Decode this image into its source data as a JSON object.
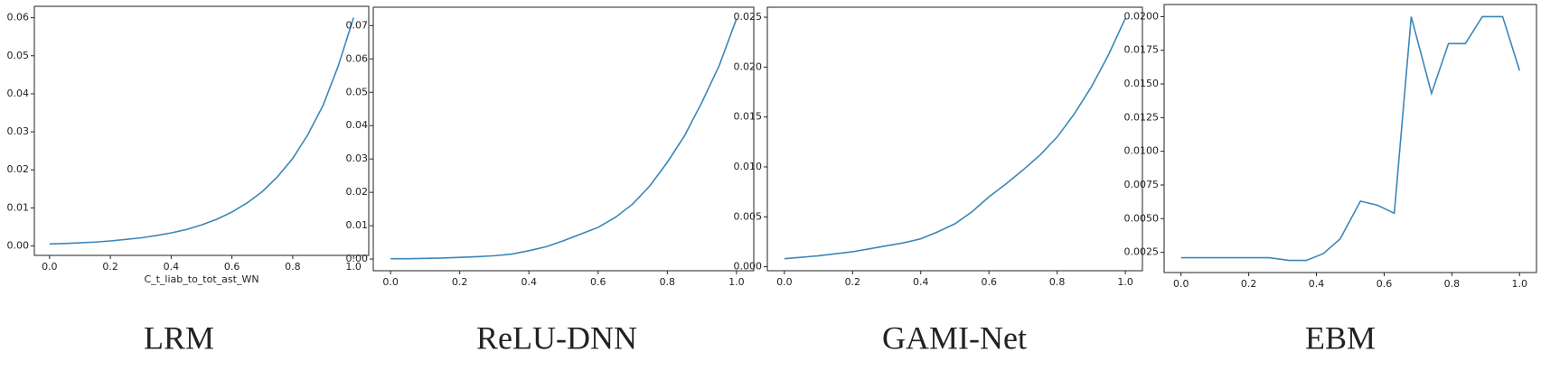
{
  "chart_data": [
    {
      "type": "line",
      "title": "LRM",
      "x_label": "C_t_liab_to_tot_ast_WN",
      "color": "#3a87b8",
      "x": [
        0,
        0.05,
        0.1,
        0.15,
        0.2,
        0.25,
        0.3,
        0.35,
        0.4,
        0.45,
        0.5,
        0.55,
        0.6,
        0.65,
        0.7,
        0.75,
        0.8,
        0.85,
        0.9,
        0.95,
        1.0
      ],
      "values": [
        0.0005,
        0.00064,
        0.0008,
        0.001,
        0.0013,
        0.0017,
        0.0021,
        0.0027,
        0.0034,
        0.0043,
        0.0055,
        0.007,
        0.0089,
        0.0113,
        0.0143,
        0.0182,
        0.023,
        0.0293,
        0.037,
        0.0474,
        0.06
      ],
      "xlim": [
        -0.05,
        1.05
      ],
      "ylim": [
        -0.0025,
        0.063
      ],
      "xticks": [
        {
          "value": 0,
          "label": "0.0"
        },
        {
          "value": 0.2,
          "label": "0.2"
        },
        {
          "value": 0.4,
          "label": "0.4"
        },
        {
          "value": 0.6,
          "label": "0.6"
        },
        {
          "value": 0.8,
          "label": "0.8"
        },
        {
          "value": 1.0,
          "label": "1.0"
        }
      ],
      "yticks": [
        {
          "value": 0,
          "label": "0.00"
        },
        {
          "value": 0.01,
          "label": "0.01"
        },
        {
          "value": 0.02,
          "label": "0.02"
        },
        {
          "value": 0.03,
          "label": "0.03"
        },
        {
          "value": 0.04,
          "label": "0.04"
        },
        {
          "value": 0.05,
          "label": "0.05"
        },
        {
          "value": 0.06,
          "label": "0.06"
        }
      ]
    },
    {
      "type": "line",
      "title": "ReLU-DNN",
      "color": "#3a87b8",
      "x": [
        0,
        0.05,
        0.1,
        0.15,
        0.2,
        0.25,
        0.3,
        0.35,
        0.4,
        0.45,
        0.5,
        0.55,
        0.6,
        0.65,
        0.7,
        0.75,
        0.8,
        0.85,
        0.9,
        0.95,
        1.0
      ],
      "values": [
        0.0001,
        0.0001,
        0.0002,
        0.0003,
        0.0005,
        0.0007,
        0.001,
        0.0015,
        0.0025,
        0.0037,
        0.0055,
        0.0075,
        0.0095,
        0.0125,
        0.0165,
        0.022,
        0.029,
        0.037,
        0.047,
        0.058,
        0.072
      ],
      "xlim": [
        -0.05,
        1.05
      ],
      "ylim": [
        -0.0035,
        0.0755
      ],
      "xticks": [
        {
          "value": 0,
          "label": "0.0"
        },
        {
          "value": 0.2,
          "label": "0.2"
        },
        {
          "value": 0.4,
          "label": "0.4"
        },
        {
          "value": 0.6,
          "label": "0.6"
        },
        {
          "value": 0.8,
          "label": "0.8"
        },
        {
          "value": 1.0,
          "label": "1.0"
        }
      ],
      "yticks": [
        {
          "value": 0,
          "label": "0.00"
        },
        {
          "value": 0.01,
          "label": "0.01"
        },
        {
          "value": 0.02,
          "label": "0.02"
        },
        {
          "value": 0.03,
          "label": "0.03"
        },
        {
          "value": 0.04,
          "label": "0.04"
        },
        {
          "value": 0.05,
          "label": "0.05"
        },
        {
          "value": 0.06,
          "label": "0.06"
        },
        {
          "value": 0.07,
          "label": "0.07"
        }
      ]
    },
    {
      "type": "line",
      "title": "GAMI-Net",
      "color": "#3a87b8",
      "x": [
        0,
        0.05,
        0.1,
        0.15,
        0.2,
        0.25,
        0.3,
        0.35,
        0.4,
        0.45,
        0.5,
        0.55,
        0.6,
        0.65,
        0.7,
        0.75,
        0.8,
        0.85,
        0.9,
        0.95,
        1.0
      ],
      "values": [
        0.0008,
        0.00095,
        0.0011,
        0.0013,
        0.0015,
        0.0018,
        0.0021,
        0.0024,
        0.0028,
        0.0035,
        0.0043,
        0.0055,
        0.007,
        0.0083,
        0.0097,
        0.0112,
        0.013,
        0.0153,
        0.018,
        0.0212,
        0.0249
      ],
      "xlim": [
        -0.05,
        1.05
      ],
      "ylim": [
        -0.0004,
        0.026
      ],
      "xticks": [
        {
          "value": 0,
          "label": "0.0"
        },
        {
          "value": 0.2,
          "label": "0.2"
        },
        {
          "value": 0.4,
          "label": "0.4"
        },
        {
          "value": 0.6,
          "label": "0.6"
        },
        {
          "value": 0.8,
          "label": "0.8"
        },
        {
          "value": 1.0,
          "label": "1.0"
        }
      ],
      "yticks": [
        {
          "value": 0,
          "label": "0.000"
        },
        {
          "value": 0.005,
          "label": "0.005"
        },
        {
          "value": 0.01,
          "label": "0.010"
        },
        {
          "value": 0.015,
          "label": "0.015"
        },
        {
          "value": 0.02,
          "label": "0.020"
        },
        {
          "value": 0.025,
          "label": "0.025"
        }
      ]
    },
    {
      "type": "line",
      "title": "EBM",
      "color": "#3a87b8",
      "x": [
        0,
        0.26,
        0.32,
        0.37,
        0.42,
        0.47,
        0.53,
        0.58,
        0.63,
        0.68,
        0.74,
        0.79,
        0.84,
        0.89,
        0.95,
        1.0
      ],
      "values": [
        0.0021,
        0.0021,
        0.0019,
        0.0019,
        0.0024,
        0.0035,
        0.0063,
        0.006,
        0.0054,
        0.02,
        0.0143,
        0.018,
        0.018,
        0.02,
        0.02,
        0.016
      ],
      "xlim": [
        -0.05,
        1.05
      ],
      "ylim": [
        0.001,
        0.0209
      ],
      "xticks": [
        {
          "value": 0,
          "label": "0.0"
        },
        {
          "value": 0.2,
          "label": "0.2"
        },
        {
          "value": 0.4,
          "label": "0.4"
        },
        {
          "value": 0.6,
          "label": "0.6"
        },
        {
          "value": 0.8,
          "label": "0.8"
        },
        {
          "value": 1.0,
          "label": "1.0"
        }
      ],
      "yticks": [
        {
          "value": 0.0025,
          "label": "0.0025"
        },
        {
          "value": 0.005,
          "label": "0.0050"
        },
        {
          "value": 0.0075,
          "label": "0.0075"
        },
        {
          "value": 0.01,
          "label": "0.0100"
        },
        {
          "value": 0.0125,
          "label": "0.0125"
        },
        {
          "value": 0.015,
          "label": "0.0150"
        },
        {
          "value": 0.0175,
          "label": "0.0175"
        },
        {
          "value": 0.02,
          "label": "0.0200"
        }
      ]
    }
  ]
}
